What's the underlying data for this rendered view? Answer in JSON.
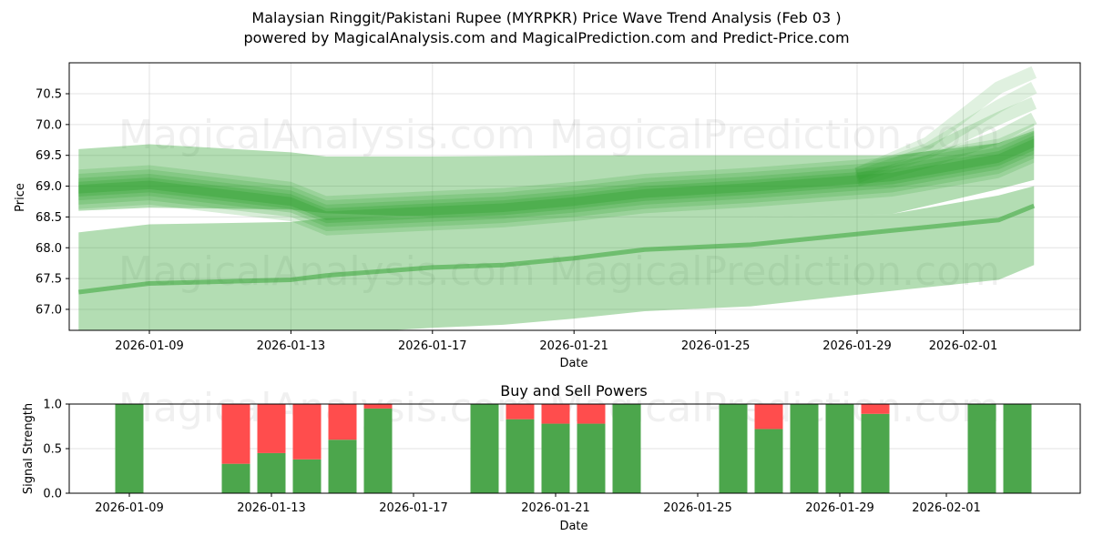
{
  "header": {
    "title": "Malaysian Ringgit/Pakistani Rupee (MYRPKR) Price Wave Trend Analysis (Feb 03 )",
    "subtitle": "powered by MagicalAnalysis.com and MagicalPrediction.com and Predict-Price.com"
  },
  "watermarks": [
    "MagicalAnalysis.com",
    "MagicalPrediction.com"
  ],
  "colors": {
    "band_green": "#2ca02c",
    "buy_green": "#4ca64c",
    "sell_red": "#ff4d4d",
    "grid": "#e0e0e0"
  },
  "chart_data": [
    {
      "type": "area",
      "title": "Malaysian Ringgit/Pakistani Rupee (MYRPKR) Price Wave Trend Analysis (Feb 03 )",
      "xlabel": "Date",
      "ylabel": "Price",
      "ylim": [
        66.65,
        70.98
      ],
      "grid": true,
      "x_tick_labels": [
        "2026-01-09",
        "2026-01-13",
        "2026-01-17",
        "2026-01-21",
        "2026-01-25",
        "2026-01-29",
        "2026-02-01"
      ],
      "y_tick_labels": [
        "67.0",
        "67.5",
        "68.0",
        "68.5",
        "69.0",
        "69.5",
        "70.0",
        "70.5"
      ],
      "x": [
        "2026-01-07",
        "2026-01-09",
        "2026-01-13",
        "2026-01-14",
        "2026-01-17",
        "2026-01-19",
        "2026-01-21",
        "2026-01-23",
        "2026-01-26",
        "2026-01-30",
        "2026-02-02",
        "2026-02-03"
      ],
      "series": [
        {
          "name": "upper wave band top",
          "values": [
            69.6,
            69.68,
            69.55,
            69.48,
            69.48,
            69.49,
            69.5,
            69.5,
            69.5,
            69.5,
            69.7,
            69.9
          ]
        },
        {
          "name": "upper wave band bottom",
          "values": [
            68.6,
            68.65,
            68.62,
            68.56,
            68.5,
            68.5,
            68.5,
            68.5,
            68.5,
            68.55,
            68.95,
            69.1
          ]
        },
        {
          "name": "core wave trend",
          "values": [
            68.95,
            69.02,
            68.75,
            68.52,
            68.6,
            68.65,
            68.75,
            68.88,
            68.98,
            69.15,
            69.45,
            69.7
          ]
        },
        {
          "name": "lower band top",
          "values": [
            68.25,
            68.38,
            68.42,
            68.48,
            68.5,
            68.5,
            68.5,
            68.5,
            68.5,
            68.55,
            68.85,
            69.0
          ]
        },
        {
          "name": "lower trend line",
          "values": [
            67.28,
            67.42,
            67.48,
            67.55,
            67.68,
            67.72,
            67.83,
            67.97,
            68.05,
            68.28,
            68.45,
            68.68
          ]
        },
        {
          "name": "lower band bottom",
          "values": [
            66.55,
            66.52,
            66.55,
            66.6,
            66.7,
            66.75,
            66.85,
            66.97,
            67.05,
            67.3,
            67.48,
            67.72
          ]
        }
      ]
    },
    {
      "type": "bar",
      "title": "Buy and Sell Powers",
      "xlabel": "Date",
      "ylabel": "Signal Strength",
      "ylim": [
        0.0,
        1.0
      ],
      "grid": true,
      "x_tick_labels": [
        "2026-01-09",
        "2026-01-13",
        "2026-01-17",
        "2026-01-21",
        "2026-01-25",
        "2026-01-29",
        "2026-02-01"
      ],
      "y_tick_labels": [
        "0.0",
        "0.5",
        "1.0"
      ],
      "categories": [
        "2026-01-09",
        "2026-01-12",
        "2026-01-13",
        "2026-01-14",
        "2026-01-15",
        "2026-01-16",
        "2026-01-19",
        "2026-01-20",
        "2026-01-21",
        "2026-01-22",
        "2026-01-23",
        "2026-01-26",
        "2026-01-27",
        "2026-01-28",
        "2026-01-29",
        "2026-01-30",
        "2026-02-02",
        "2026-02-03"
      ],
      "series": [
        {
          "name": "Buy",
          "color": "#4ca64c",
          "values": [
            1.0,
            0.33,
            0.45,
            0.38,
            0.6,
            0.95,
            1.0,
            0.83,
            0.78,
            0.78,
            1.0,
            1.0,
            0.72,
            1.0,
            1.0,
            0.89,
            1.0,
            1.0
          ]
        },
        {
          "name": "Sell",
          "color": "#ff4d4d",
          "values": [
            0.0,
            0.67,
            0.55,
            0.62,
            0.4,
            0.05,
            0.0,
            0.17,
            0.22,
            0.22,
            0.0,
            0.0,
            0.28,
            0.0,
            0.0,
            0.11,
            0.0,
            0.0
          ]
        }
      ]
    }
  ]
}
